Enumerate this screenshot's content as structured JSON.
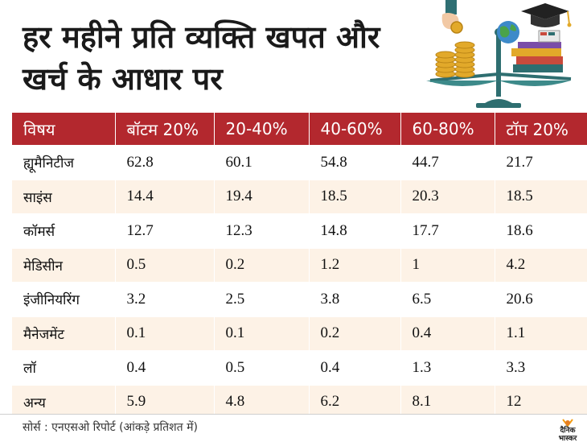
{
  "title": {
    "line1": "हर महीने प्रति व्यक्ति खपत और",
    "line2": "खर्च के आधार पर"
  },
  "table": {
    "headers": [
      "विषय",
      "बॉटम 20%",
      "20-40%",
      "40-60%",
      "60-80%",
      "टॉप 20%"
    ],
    "rows": [
      [
        "ह्यूमैनिटीज",
        "62.8",
        "60.1",
        "54.8",
        "44.7",
        "21.7"
      ],
      [
        "साइंस",
        "14.4",
        "19.4",
        "18.5",
        "20.3",
        "18.5"
      ],
      [
        "कॉमर्स",
        "12.7",
        "12.3",
        "14.8",
        "17.7",
        "18.6"
      ],
      [
        "मेडिसीन",
        "0.5",
        "0.2",
        "1.2",
        "1",
        "4.2"
      ],
      [
        "इंजीनियरिंग",
        "3.2",
        "2.5",
        "3.8",
        "6.5",
        "20.6"
      ],
      [
        "मैनेजमेंट",
        "0.1",
        "0.1",
        "0.2",
        "0.4",
        "1.1"
      ],
      [
        "लॉ",
        "0.4",
        "0.5",
        "0.4",
        "1.3",
        "3.3"
      ],
      [
        "अन्य",
        "5.9",
        "4.8",
        "6.2",
        "8.1",
        "12"
      ]
    ]
  },
  "footer": {
    "source": "सोर्स : एनएसओ रिपोर्ट  (आंकड़े प्रतिशत में)",
    "logo_line1": "दैनिक",
    "logo_line2": "भास्कर"
  },
  "colors": {
    "header_red": "#b3282e",
    "row_shade": "#fdf2e6",
    "coin_gold": "#e2a92a",
    "scale_teal": "#3d8a8a"
  },
  "illustration": {
    "icons": [
      "hand-coin-icon",
      "coin-stack-icon",
      "balance-scale-icon",
      "graduation-cap-icon",
      "globe-icon",
      "book-stack-icon"
    ]
  }
}
